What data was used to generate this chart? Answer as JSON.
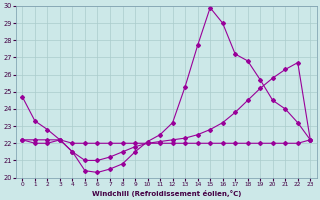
{
  "xlabel": "Windchill (Refroidissement éolien,°C)",
  "bg_color": "#cce8e8",
  "grid_color": "#aacccc",
  "line_color": "#990099",
  "xlim": [
    0,
    23
  ],
  "ylim": [
    20,
    30
  ],
  "xticks": [
    0,
    1,
    2,
    3,
    4,
    5,
    6,
    7,
    8,
    9,
    10,
    11,
    12,
    13,
    14,
    15,
    16,
    17,
    18,
    19,
    20,
    21,
    22,
    23
  ],
  "yticks": [
    20,
    21,
    22,
    23,
    24,
    25,
    26,
    27,
    28,
    29,
    30
  ],
  "series1": [
    24.7,
    23.3,
    22.8,
    22.2,
    21.5,
    20.4,
    20.3,
    20.5,
    20.8,
    21.5,
    22.1,
    22.5,
    23.2,
    25.3,
    27.7,
    29.9,
    29.0,
    27.2,
    26.8,
    25.7,
    24.5,
    24.0,
    23.2,
    22.2
  ],
  "series2": [
    22.2,
    22.2,
    22.2,
    22.2,
    22.0,
    22.0,
    22.0,
    22.0,
    22.0,
    22.0,
    22.0,
    22.1,
    22.2,
    22.3,
    22.5,
    22.8,
    23.2,
    23.8,
    24.5,
    25.2,
    25.8,
    26.3,
    26.7,
    22.2
  ],
  "series3": [
    22.2,
    22.0,
    22.0,
    22.2,
    21.5,
    21.0,
    21.0,
    21.2,
    21.5,
    21.8,
    22.0,
    22.0,
    22.0,
    22.0,
    22.0,
    22.0,
    22.0,
    22.0,
    22.0,
    22.0,
    22.0,
    22.0,
    22.0,
    22.2
  ]
}
